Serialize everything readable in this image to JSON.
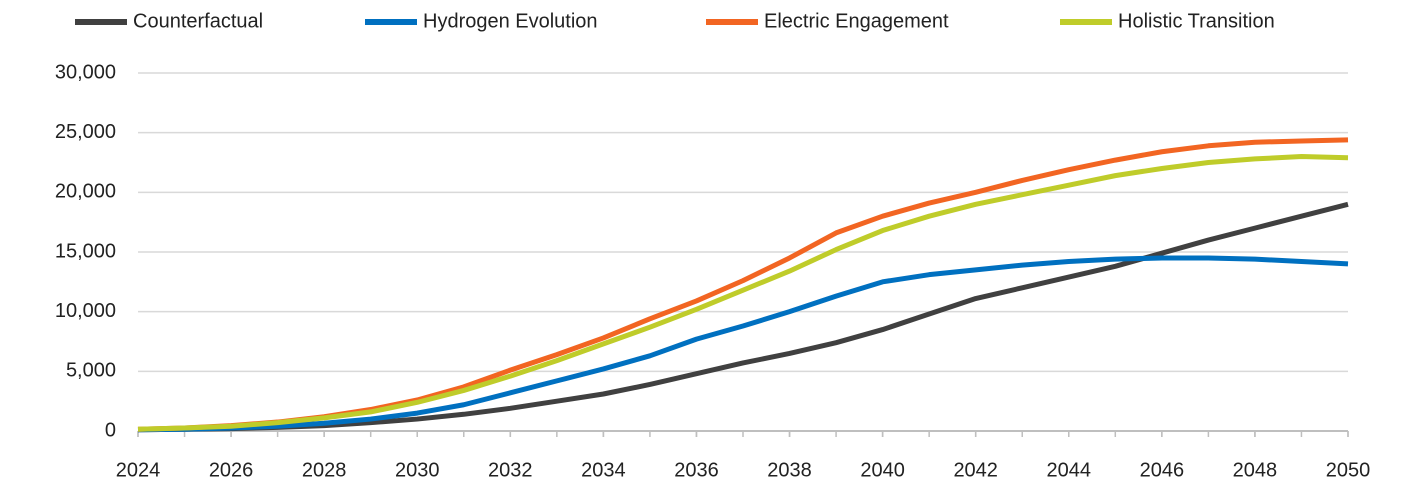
{
  "chart_data": {
    "type": "line",
    "x": [
      2024,
      2025,
      2026,
      2027,
      2028,
      2029,
      2030,
      2031,
      2032,
      2033,
      2034,
      2035,
      2036,
      2037,
      2038,
      2039,
      2040,
      2041,
      2042,
      2043,
      2044,
      2045,
      2046,
      2047,
      2048,
      2049,
      2050
    ],
    "series": [
      {
        "name": "Counterfactual",
        "color": "#404040",
        "values": [
          100,
          150,
          200,
          300,
          450,
          700,
          1000,
          1400,
          1900,
          2500,
          3100,
          3900,
          4800,
          5700,
          6500,
          7400,
          8500,
          9800,
          11100,
          12000,
          12900,
          13800,
          14900,
          16000,
          17000,
          18000,
          19000
        ]
      },
      {
        "name": "Hydrogen Evolution",
        "color": "#0070c0",
        "values": [
          100,
          150,
          250,
          400,
          650,
          1000,
          1500,
          2200,
          3200,
          4200,
          5200,
          6300,
          7700,
          8800,
          10000,
          11300,
          12500,
          13100,
          13500,
          13900,
          14200,
          14400,
          14500,
          14500,
          14400,
          14200,
          14000
        ]
      },
      {
        "name": "Electric Engagement",
        "color": "#f26522",
        "values": [
          150,
          250,
          450,
          750,
          1200,
          1800,
          2600,
          3700,
          5100,
          6400,
          7800,
          9400,
          10900,
          12600,
          14500,
          16600,
          18000,
          19100,
          20000,
          21000,
          21900,
          22700,
          23400,
          23900,
          24200,
          24300,
          24400
        ]
      },
      {
        "name": "Holistic Transition",
        "color": "#bfcc2a",
        "values": [
          150,
          250,
          400,
          700,
          1100,
          1600,
          2400,
          3400,
          4600,
          5900,
          7300,
          8700,
          10200,
          11800,
          13400,
          15200,
          16800,
          18000,
          19000,
          19800,
          20600,
          21400,
          22000,
          22500,
          22800,
          23000,
          22900
        ]
      }
    ],
    "xlim": [
      2024,
      2050
    ],
    "xticks": [
      2024,
      2026,
      2028,
      2030,
      2032,
      2034,
      2036,
      2038,
      2040,
      2042,
      2044,
      2046,
      2048,
      2050
    ],
    "ylim": [
      0,
      30000
    ],
    "yticks": [
      0,
      {
        "value": 5000,
        "label": "5,000"
      },
      {
        "value": 10000,
        "label": "10,000"
      },
      {
        "value": 15000,
        "label": "15,000"
      },
      {
        "value": 20000,
        "label": "20,000"
      },
      {
        "value": 25000,
        "label": "25,000"
      },
      {
        "value": 30000,
        "label": "30,000"
      }
    ],
    "grid": true,
    "legend": "top"
  }
}
